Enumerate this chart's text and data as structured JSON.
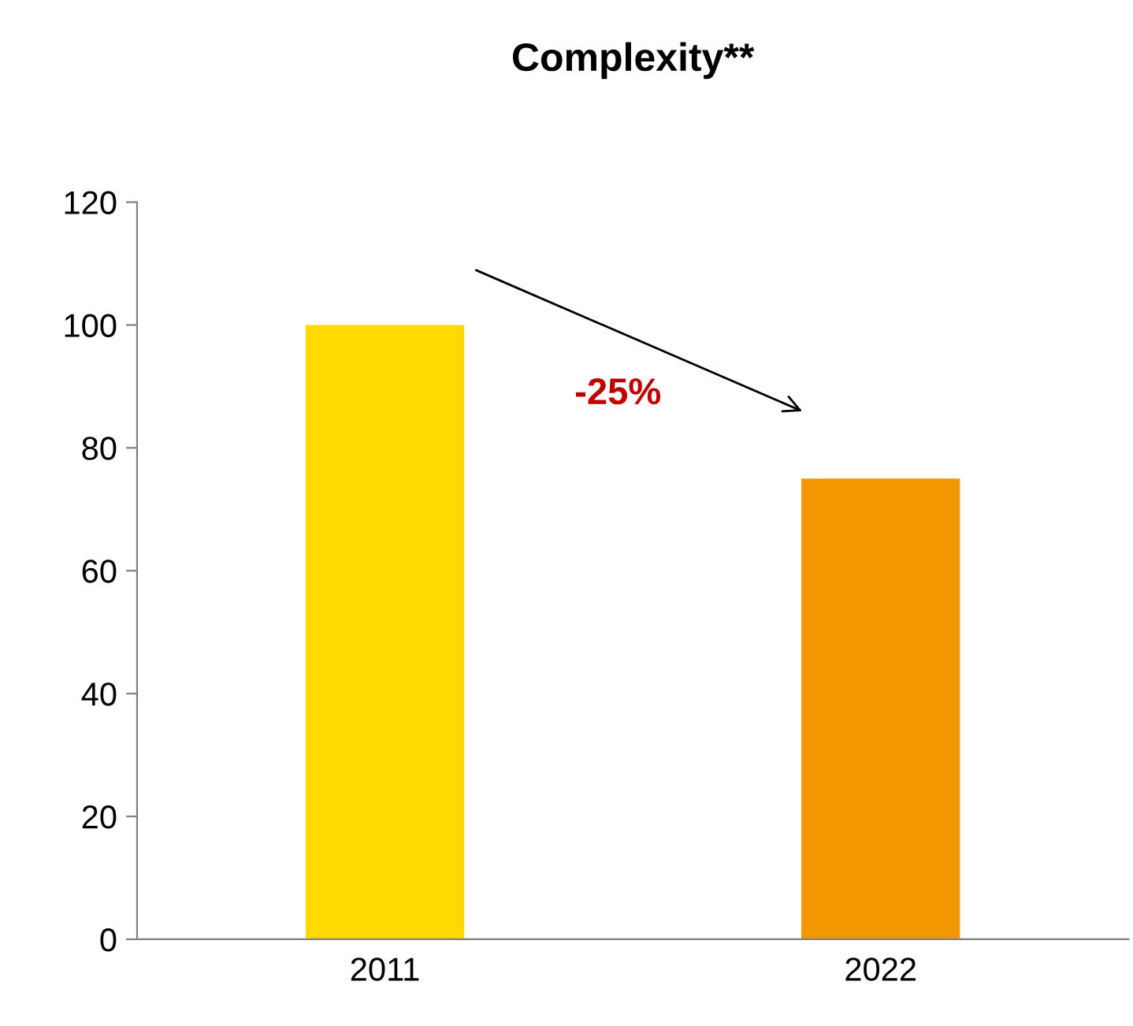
{
  "chart_data": {
    "type": "bar",
    "title": "Complexity**",
    "categories": [
      "2011",
      "2022"
    ],
    "values": [
      100,
      75
    ],
    "colors": [
      "#ffd900",
      "#f39700"
    ],
    "ylim": [
      0,
      120
    ],
    "yticks": [
      0,
      20,
      40,
      60,
      80,
      100,
      120
    ],
    "grid": false,
    "legend": false,
    "annotations": [
      "-25%"
    ]
  }
}
